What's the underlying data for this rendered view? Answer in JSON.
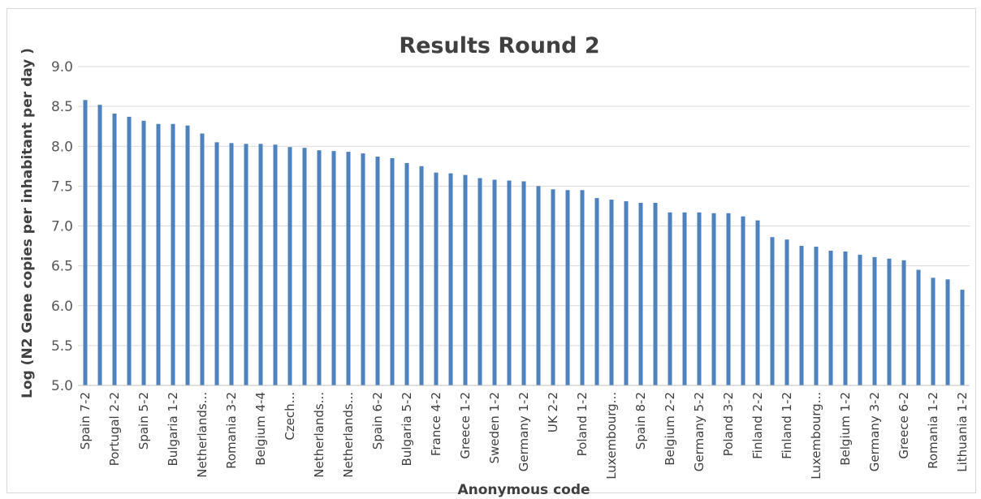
{
  "chart_data": {
    "type": "bar",
    "title": "Results Round 2",
    "xlabel": "Anonymous code",
    "ylabel": "Log (N2 Gene copies per inhabitant per day )",
    "ylim": [
      5.0,
      9.0
    ],
    "yticks": [
      "5.0",
      "5.5",
      "6.0",
      "6.5",
      "7.0",
      "7.5",
      "8.0",
      "8.5",
      "9.0"
    ],
    "grid": true,
    "bar_color": "#4f81bd",
    "categories": [
      "Spain 7-2",
      "",
      "Portugal 2-2",
      "",
      "Spain 5-2",
      "",
      "Bulgaria 1-2",
      "",
      "Netherlands...",
      "",
      "Romania 3-2",
      "",
      "Belgium 4-4",
      "",
      "Czech...",
      "",
      "Netherlands...",
      "",
      "Netherlands...",
      "",
      "Spain 6-2",
      "",
      "Bulgaria 5-2",
      "",
      "France 4-2",
      "",
      "Greece 1-2",
      "",
      "Sweden 1-2",
      "",
      "Germany 1-2",
      "",
      "UK 2-2",
      "",
      "Poland 1-2",
      "",
      "Luxembourg...",
      "",
      "Spain 8-2",
      "",
      "Belgium 2-2",
      "",
      "Germany 5-2",
      "",
      "Poland 3-2",
      "",
      "Finland 2-2",
      "",
      "Finland 1-2",
      "",
      "Luxembourg...",
      "",
      "Belgium 1-2",
      "",
      "Germany 3-2",
      "",
      "Greece 6-2",
      "",
      "Romania 1-2",
      "",
      "Lithuania 1-2"
    ],
    "values": [
      8.58,
      8.52,
      8.41,
      8.37,
      8.32,
      8.28,
      8.28,
      8.26,
      8.16,
      8.05,
      8.04,
      8.03,
      8.03,
      8.02,
      7.99,
      7.98,
      7.95,
      7.94,
      7.93,
      7.91,
      7.87,
      7.85,
      7.79,
      7.75,
      7.67,
      7.66,
      7.64,
      7.6,
      7.58,
      7.57,
      7.56,
      7.5,
      7.46,
      7.45,
      7.45,
      7.35,
      7.33,
      7.31,
      7.29,
      7.29,
      7.17,
      7.17,
      7.17,
      7.16,
      7.16,
      7.12,
      7.07,
      6.86,
      6.83,
      6.75,
      6.74,
      6.69,
      6.68,
      6.64,
      6.61,
      6.59,
      6.57,
      6.45,
      6.35,
      6.33,
      6.2
    ]
  }
}
